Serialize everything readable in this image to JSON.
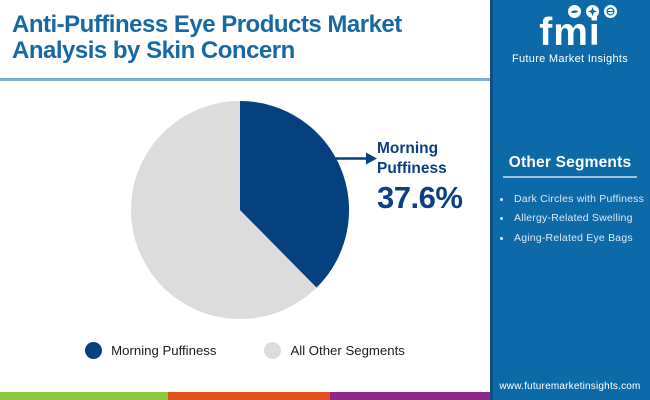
{
  "header": {
    "title": "Anti-Puffiness Eye Products Market Analysis by Skin Concern"
  },
  "logo": {
    "text": "fmi",
    "subtitle": "Future Market Insights",
    "icons": [
      "bird-icon",
      "compass-icon",
      "globe-icon"
    ]
  },
  "sidebar": {
    "heading": "Other Segments",
    "items": [
      "Dark Circles with Puffiness",
      "Allergy-Related Swelling",
      "Aging-Related Eye Bags"
    ],
    "website": "www.futuremarketinsights.com"
  },
  "chart_data": {
    "type": "pie",
    "title": "Anti-Puffiness Eye Products Market Analysis by Skin Concern",
    "slices": [
      {
        "label": "Morning Puffiness",
        "value": 37.6,
        "color": "#06417f"
      },
      {
        "label": "All Other Segments",
        "value": 62.4,
        "color": "#dcdcdc"
      }
    ],
    "start_angle": "12-oclock",
    "direction": "clockwise",
    "annotation": {
      "label": "Morning Puffiness",
      "value_label": "37.6%"
    },
    "legend_position": "bottom"
  },
  "footer_stripe": {
    "colors": [
      "#8cc63f",
      "#e2521f",
      "#8e2889"
    ]
  },
  "colors": {
    "title_blue": "#1769a4",
    "rule_blue": "#7fadcc",
    "sidebar_blue": "#0d6aa8",
    "sidebar_edge": "#0a5188",
    "navy": "#0c3f7d",
    "underline": "#9dc2da",
    "bullet_text": "#d9e9f5",
    "legend_text": "#1c1c1c"
  }
}
